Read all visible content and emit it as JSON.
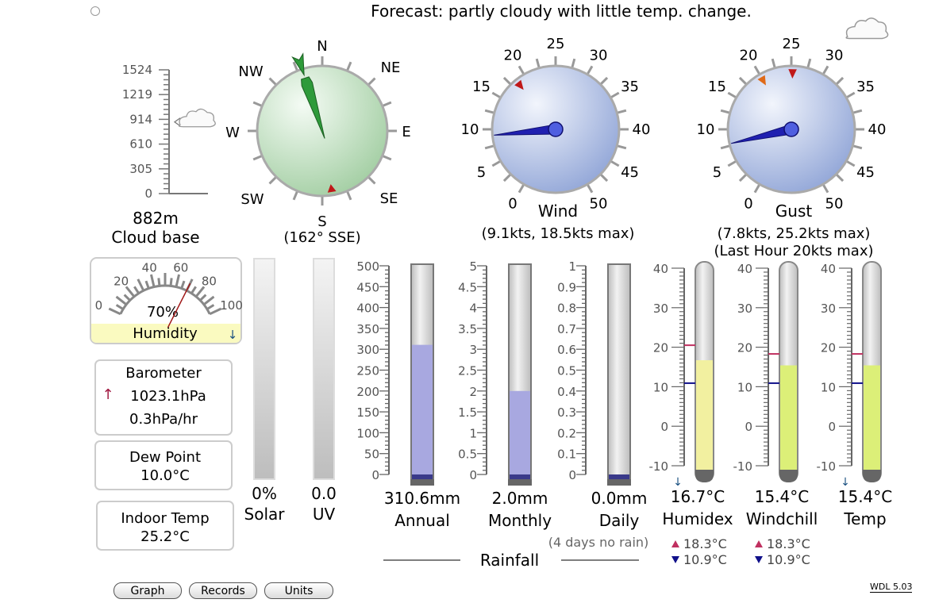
{
  "forecast": "Forecast: partly cloudy with little temp. change.",
  "cloud_base": {
    "scale": [
      "0",
      "305",
      "610",
      "914",
      "1219",
      "1524"
    ],
    "value_m": 882,
    "value": "882m",
    "label": "Cloud base"
  },
  "wind_direction": {
    "labels": {
      "N": "N",
      "NE": "NE",
      "E": "E",
      "SE": "SE",
      "S": "S",
      "SW": "SW",
      "W": "W",
      "NW": "NW"
    },
    "bearing": 162,
    "recent_bearing": 171,
    "reading": "(162° SSE)"
  },
  "wind": {
    "scale": [
      "0",
      "5",
      "10",
      "15",
      "20",
      "25",
      "30",
      "35",
      "40",
      "45",
      "50"
    ],
    "label": "Wind",
    "speed": 9.1,
    "max": 18.5,
    "reading": "(9.1kts, 18.5kts max)"
  },
  "gust": {
    "scale": [
      "0",
      "5",
      "10",
      "15",
      "20",
      "25",
      "30",
      "35",
      "40",
      "45",
      "50"
    ],
    "label": "Gust",
    "speed": 7.8,
    "max": 25.2,
    "last_hour_max": 20,
    "reading": "(7.8kts, 25.2kts max)",
    "reading2": "(Last Hour 20kts max)"
  },
  "humidity": {
    "scale": [
      "0",
      "20",
      "40",
      "60",
      "80",
      "100"
    ],
    "value": 70,
    "value_text": "70%",
    "label": "Humidity",
    "trend": "↓"
  },
  "barometer": {
    "label": "Barometer",
    "trend": "↑",
    "value": "1023.1hPa",
    "rate": "0.3hPa/hr"
  },
  "dew_point": {
    "label": "Dew Point",
    "value": "10.0°C"
  },
  "indoor_temp": {
    "label": "Indoor Temp",
    "value": "25.2°C"
  },
  "solar": {
    "value_text": "0%",
    "label": "Solar",
    "level": 0
  },
  "uv": {
    "value_text": "0.0",
    "label": "UV",
    "level": 0
  },
  "rainfall": {
    "title": "Rainfall",
    "note": "(4 days no rain)",
    "gauges": [
      {
        "label": "Annual",
        "value": 310.6,
        "value_text": "310.6mm",
        "max": 500,
        "scale": [
          "0",
          "50",
          "100",
          "150",
          "200",
          "250",
          "300",
          "350",
          "400",
          "450",
          "500"
        ]
      },
      {
        "label": "Monthly",
        "value": 2.0,
        "value_text": "2.0mm",
        "max": 5,
        "scale": [
          "0",
          "0.5",
          "1",
          "1.5",
          "2",
          "2.5",
          "3",
          "3.5",
          "4",
          "4.5",
          "5"
        ]
      },
      {
        "label": "Daily",
        "value": 0.0,
        "value_text": "0.0mm",
        "max": 1,
        "scale": [
          "0",
          "0.1",
          "0.2",
          "0.3",
          "0.4",
          "0.5",
          "0.6",
          "0.7",
          "0.8",
          "0.9",
          "1"
        ]
      }
    ]
  },
  "thermometers": [
    {
      "label": "Humidex",
      "value": 16.7,
      "value_text": "16.7°C",
      "high": 20.5,
      "low": 10.9,
      "trend": "↓",
      "fill": "#f2f0a0",
      "scale": [
        "-10",
        "0",
        "10",
        "20",
        "30",
        "40"
      ]
    },
    {
      "label": "Windchill",
      "value": 15.4,
      "value_text": "15.4°C",
      "high": 18.3,
      "low": 10.9,
      "high_text": "18.3°C",
      "low_text": "10.9°C",
      "fill": "#dcef78",
      "scale": [
        "-10",
        "0",
        "10",
        "20",
        "30",
        "40"
      ]
    },
    {
      "label": "Temp",
      "value": 15.4,
      "value_text": "15.4°C",
      "high": 18.3,
      "low": 10.9,
      "high_text": "18.3°C",
      "low_text": "10.9°C",
      "trend": "↓",
      "fill": "#dcef78",
      "scale": [
        "-10",
        "0",
        "10",
        "20",
        "30",
        "40"
      ]
    }
  ],
  "buttons": {
    "graph": "Graph",
    "records": "Records",
    "units": "Units"
  },
  "version": "WDL 5.03",
  "colors": {
    "high": "#c03060",
    "low": "#10108a",
    "rain_fill": "#a8a8e0",
    "wind_needle": "#2020b0",
    "compass_needle": "#2e9a3a"
  }
}
